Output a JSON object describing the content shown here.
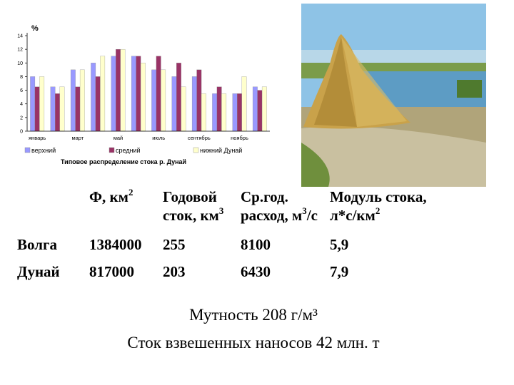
{
  "chart_data": {
    "type": "bar",
    "caption": "Типовое распределение стока р. Дунай",
    "ylabel": "%",
    "categories": [
      "январь",
      null,
      "март",
      null,
      "май",
      null,
      "июль",
      null,
      "сентябрь",
      null,
      "ноябрь",
      null
    ],
    "series": [
      {
        "name": "верхний",
        "color": "#9999ff",
        "values": [
          8,
          6.5,
          9,
          10,
          11,
          11,
          9,
          8,
          8,
          5.5,
          5.5,
          6.5
        ]
      },
      {
        "name": "средний",
        "color": "#993366",
        "values": [
          6.5,
          5.5,
          6.5,
          8,
          12,
          11,
          11,
          10,
          9,
          6.5,
          5.5,
          6
        ]
      },
      {
        "name": "нижний Дунай",
        "color": "#ffffcc",
        "values": [
          8,
          6.5,
          9,
          11,
          12,
          10,
          9,
          6.5,
          5.5,
          5.5,
          8,
          6.5
        ]
      }
    ],
    "ylim": [
      0,
      14
    ],
    "yticks": [
      0,
      2,
      4,
      6,
      8,
      10,
      12,
      14
    ]
  },
  "table": {
    "header": [
      [
        [
          {
            "t": "Ф, км"
          },
          {
            "t": "2",
            "sup": true
          }
        ]
      ],
      [
        [
          {
            "t": "Годовой"
          }
        ],
        [
          {
            "t": "сток, км"
          },
          {
            "t": "3",
            "sup": true
          }
        ]
      ],
      [
        [
          {
            "t": "Ср.год."
          }
        ],
        [
          {
            "t": "расход, м"
          },
          {
            "t": "3",
            "sup": true
          },
          {
            "t": "/с"
          }
        ]
      ],
      [
        [
          {
            "t": "Модуль стока,"
          }
        ],
        [
          {
            "t": "л*с/км"
          },
          {
            "t": "2",
            "sup": true
          }
        ]
      ]
    ],
    "rows": [
      [
        "Волга",
        "1384000",
        "255",
        "8100",
        "5,9"
      ],
      [
        "Дунай",
        "817000",
        "203",
        "6430",
        "7,9"
      ]
    ]
  },
  "footer": [
    "Мутность 208 г/м³",
    "Сток взвешенных наносов 42 млн. т"
  ]
}
